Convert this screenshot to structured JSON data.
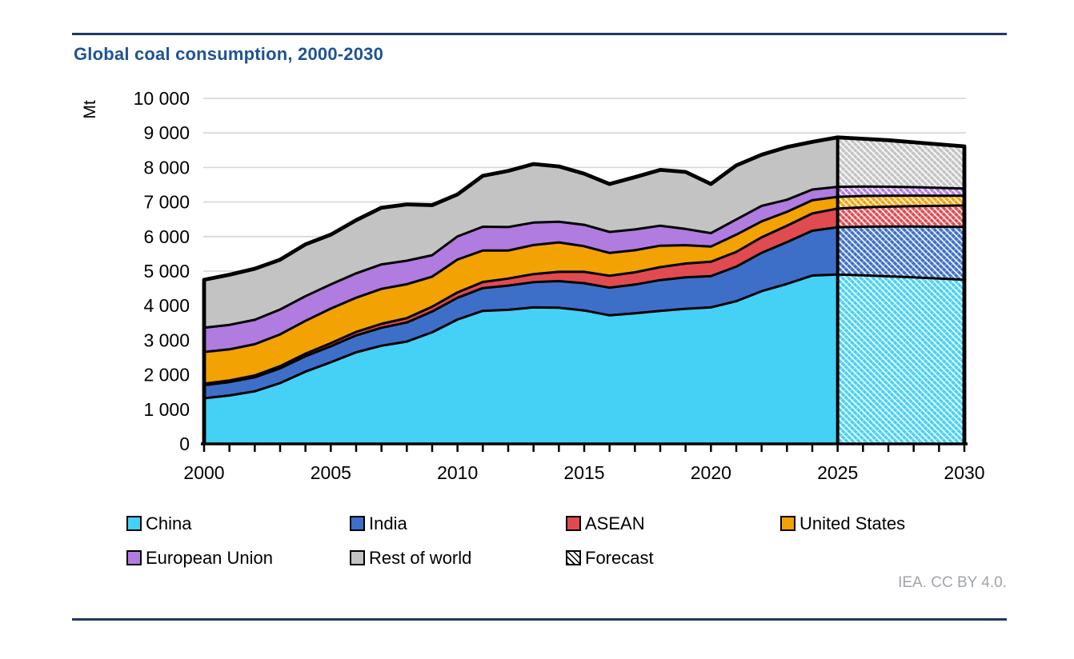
{
  "header": {
    "title": "Global coal consumption, 2000-2030"
  },
  "chart_data": {
    "type": "area",
    "stacked": true,
    "unit_label": "Mt",
    "title": "Global coal consumption, 2000-2030",
    "xlabel": "",
    "ylabel": "Mt",
    "ylim": [
      0,
      10000
    ],
    "grid": true,
    "legend_position": "bottom",
    "forecast_start": 2025,
    "x": [
      2000,
      2001,
      2002,
      2003,
      2004,
      2005,
      2006,
      2007,
      2008,
      2009,
      2010,
      2011,
      2012,
      2013,
      2014,
      2015,
      2016,
      2017,
      2018,
      2019,
      2020,
      2021,
      2022,
      2023,
      2024,
      2025,
      2026,
      2027,
      2028,
      2029,
      2030
    ],
    "x_ticks": [
      2000,
      2005,
      2010,
      2015,
      2020,
      2025,
      2030
    ],
    "y_ticks": [
      "0",
      "1 000",
      "2 000",
      "3 000",
      "4 000",
      "5 000",
      "6 000",
      "7 000",
      "8 000",
      "9 000",
      "10 000"
    ],
    "series": [
      {
        "name": "China",
        "color": "#45d1f5",
        "values": [
          1320,
          1400,
          1520,
          1760,
          2090,
          2360,
          2650,
          2840,
          2960,
          3230,
          3600,
          3850,
          3880,
          3950,
          3940,
          3860,
          3720,
          3780,
          3850,
          3910,
          3950,
          4130,
          4420,
          4630,
          4870,
          4900,
          4880,
          4850,
          4820,
          4785,
          4750
        ]
      },
      {
        "name": "India",
        "color": "#3d6fc9",
        "values": [
          380,
          390,
          405,
          425,
          445,
          465,
          490,
          520,
          555,
          600,
          630,
          660,
          700,
          730,
          770,
          790,
          800,
          830,
          890,
          910,
          905,
          1000,
          1110,
          1210,
          1300,
          1370,
          1405,
          1440,
          1470,
          1500,
          1530
        ]
      },
      {
        "name": "ASEAN",
        "color": "#e04b50",
        "values": [
          40,
          45,
          55,
          65,
          75,
          90,
          100,
          115,
          125,
          140,
          155,
          175,
          205,
          235,
          270,
          330,
          345,
          355,
          375,
          400,
          415,
          425,
          450,
          475,
          500,
          540,
          560,
          575,
          590,
          605,
          620
        ]
      },
      {
        "name": "United States",
        "color": "#f2a202",
        "values": [
          920,
          900,
          905,
          920,
          950,
          1000,
          990,
          1010,
          980,
          870,
          950,
          910,
          810,
          840,
          850,
          740,
          660,
          640,
          620,
          530,
          440,
          500,
          460,
          400,
          380,
          340,
          330,
          318,
          305,
          292,
          280
        ]
      },
      {
        "name": "European Union",
        "color": "#b07ce0",
        "values": [
          700,
          710,
          705,
          720,
          715,
          700,
          705,
          710,
          680,
          620,
          670,
          690,
          680,
          650,
          600,
          620,
          610,
          600,
          580,
          470,
          390,
          440,
          450,
          350,
          310,
          290,
          275,
          260,
          245,
          228,
          210
        ]
      },
      {
        "name": "Rest of world",
        "color": "#c3c3c3",
        "values": [
          1390,
          1450,
          1480,
          1440,
          1500,
          1440,
          1540,
          1640,
          1630,
          1450,
          1215,
          1475,
          1625,
          1695,
          1600,
          1480,
          1385,
          1515,
          1615,
          1650,
          1420,
          1565,
          1480,
          1525,
          1380,
          1430,
          1380,
          1347,
          1300,
          1260,
          1220
        ]
      }
    ],
    "legend_extra": {
      "label": "Forecast",
      "pattern": "diagonal-hatch"
    }
  },
  "footer": {
    "credit": "IEA. CC BY 4.0."
  },
  "colors": {
    "title": "#1f5394",
    "rule": "#1f3864",
    "grid": "#d9d9d9",
    "axis": "#000000",
    "credit": "#a0a5aa",
    "outline": "#000000"
  }
}
